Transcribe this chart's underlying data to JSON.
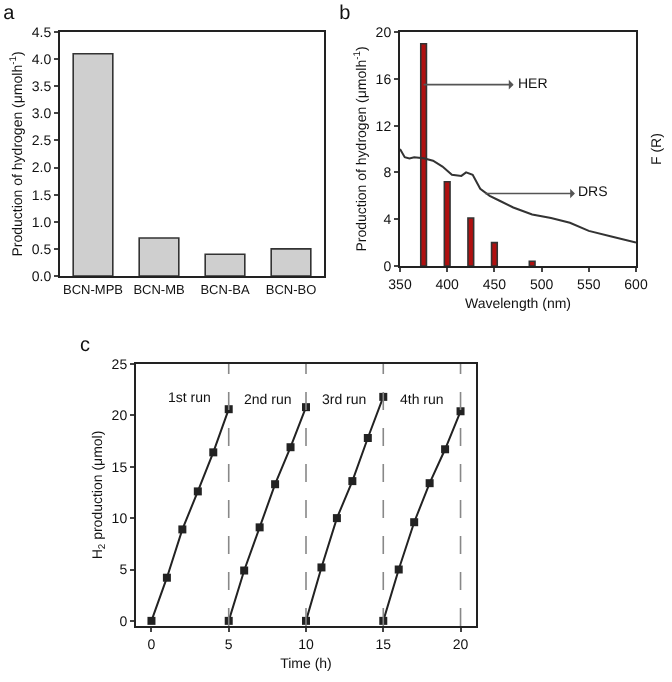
{
  "chart_data": [
    {
      "type": "bar",
      "title": "a",
      "ylabel": "Production of hydrogen (μmolh$^{-1}$)",
      "categories": [
        "BCN-MPB",
        "BCN-MB",
        "BCN-BA",
        "BCN-BO"
      ],
      "values": [
        4.1,
        0.7,
        0.4,
        0.5
      ],
      "color": "#cfcfcf",
      "ylim": [
        0,
        4.5
      ],
      "yticks": [
        {
          "value": 0,
          "label": "0.0"
        },
        0.5,
        {
          "value": 1,
          "label": "1.0"
        },
        1.5,
        {
          "value": 2,
          "label": "2.0"
        },
        2.5,
        {
          "value": 3,
          "label": "3.0"
        },
        3.5,
        {
          "value": 4,
          "label": "4.0"
        },
        4.5
      ]
    },
    {
      "type": "bar",
      "title": "b",
      "xlabel": "Wavelength (nm)",
      "ylabel": "Production of hydrogen (μmolh$^{-1}$)",
      "y2label": "F (R)",
      "tick_labels": "xy",
      "xlim": [
        350,
        600
      ],
      "xticks": [
        350,
        400,
        450,
        500,
        550,
        600
      ],
      "ylim": [
        0,
        20
      ],
      "yticks": [
        0,
        4,
        8,
        12,
        16,
        20
      ],
      "series": [
        {
          "color": "#b01010",
          "x": [
            375,
            400,
            425,
            450,
            490
          ],
          "values": [
            19,
            7.2,
            4.1,
            2.0,
            0.4
          ]
        },
        {
          "type": "line",
          "color": "#333333",
          "x": [
            350,
            355,
            360,
            365,
            375,
            385,
            395,
            405,
            415,
            420,
            427,
            435,
            445,
            455,
            470,
            490,
            510,
            530,
            550,
            575,
            600
          ],
          "values": [
            10,
            9.3,
            9.2,
            9.3,
            9.2,
            9.0,
            8.5,
            7.8,
            7.7,
            8.0,
            7.8,
            6.6,
            6.0,
            5.6,
            5.0,
            4.4,
            4.1,
            3.7,
            3.0,
            2.5,
            2.0
          ]
        }
      ],
      "annotations": [
        {
          "text": "HER",
          "x": 375,
          "y": 15.5
        },
        {
          "text": "DRS",
          "x": 440,
          "y": 6.2
        }
      ]
    },
    {
      "type": "line",
      "title": "c",
      "xlabel": "Time (h)",
      "ylabel": "H$_{2}$ production (μmol)",
      "marker": "square",
      "xlim": [
        -1,
        21
      ],
      "xticks": [
        0,
        5,
        10,
        15,
        20
      ],
      "ylim": [
        -0.5,
        25
      ],
      "yticks": [
        0,
        5,
        10,
        15,
        20,
        25
      ],
      "series": [
        {
          "name": "1st run",
          "color": "#222222",
          "x": [
            0,
            1,
            2,
            3,
            4,
            5
          ],
          "values": [
            0,
            4.2,
            8.9,
            12.6,
            16.4,
            20.6
          ]
        },
        {
          "name": "2nd run",
          "color": "#222222",
          "x": [
            5,
            6,
            7,
            8,
            9,
            10
          ],
          "values": [
            0,
            4.9,
            9.1,
            13.3,
            16.9,
            20.8
          ]
        },
        {
          "name": "3rd run",
          "color": "#222222",
          "x": [
            10,
            11,
            12,
            13,
            14,
            15
          ],
          "values": [
            0,
            5.2,
            10,
            13.6,
            17.8,
            21.8
          ]
        },
        {
          "name": "4th run",
          "color": "#222222",
          "x": [
            15,
            16,
            17,
            18,
            19,
            20
          ],
          "values": [
            0,
            5,
            9.6,
            13.4,
            16.7,
            20.4
          ]
        }
      ],
      "ref_lines": [
        {
          "axis": "x",
          "value": 5,
          "line_style": "dashed",
          "color": "#888888"
        },
        {
          "axis": "x",
          "value": 10,
          "line_style": "dashed",
          "color": "#888888"
        },
        {
          "axis": "x",
          "value": 15,
          "line_style": "dashed",
          "color": "#888888"
        },
        {
          "axis": "x",
          "value": 20,
          "line_style": "dashed",
          "color": "#888888"
        }
      ]
    }
  ]
}
